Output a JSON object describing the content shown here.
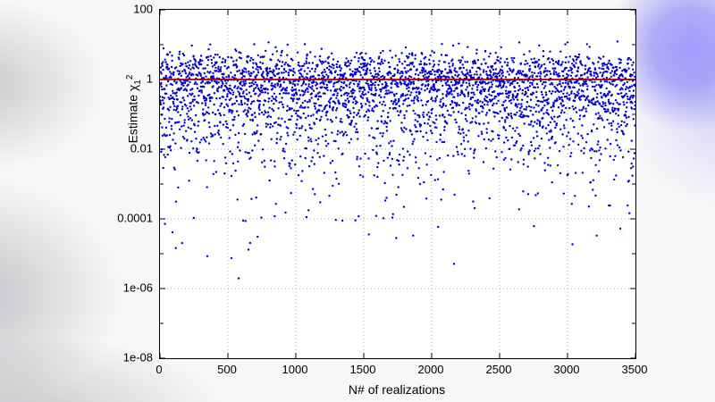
{
  "colors": {
    "points": "#0000cc",
    "reference_line": "#990000",
    "grid": "#aaaaaa",
    "axis": "#000000",
    "background_orb": "#8c7efa"
  },
  "chart_data": {
    "type": "scatter",
    "title": "",
    "xlabel": "N# of realizations",
    "ylabel": "Estimate χ_1^2",
    "ylabel_text": "Estimate",
    "ylabel_symbol": "χ",
    "ylabel_sub": "1",
    "ylabel_sup": "2",
    "x_range": [
      0,
      3500
    ],
    "y_scale": "log",
    "y_range": [
      1e-08,
      100
    ],
    "x_ticks": [
      0,
      500,
      1000,
      1500,
      2000,
      2500,
      3000,
      3500
    ],
    "y_ticks": [
      {
        "label": "100",
        "log10": 2
      },
      {
        "label": "1",
        "log10": 0
      },
      {
        "label": "0.01",
        "log10": -2
      },
      {
        "label": "0.0001",
        "log10": -4
      },
      {
        "label": "1e-06",
        "log10": -6
      },
      {
        "label": "1e-08",
        "log10": -8
      }
    ],
    "minor_y_tick_logs": [
      1,
      -1,
      -3,
      -5,
      -7
    ],
    "grid": true,
    "legend": "none",
    "n_points": 3500,
    "distribution": "y = Z^2 with Z ~ N(0,1)  (chi-squared, 1 dof), x = realization index",
    "seed": 20,
    "reference_line_y": 1
  }
}
